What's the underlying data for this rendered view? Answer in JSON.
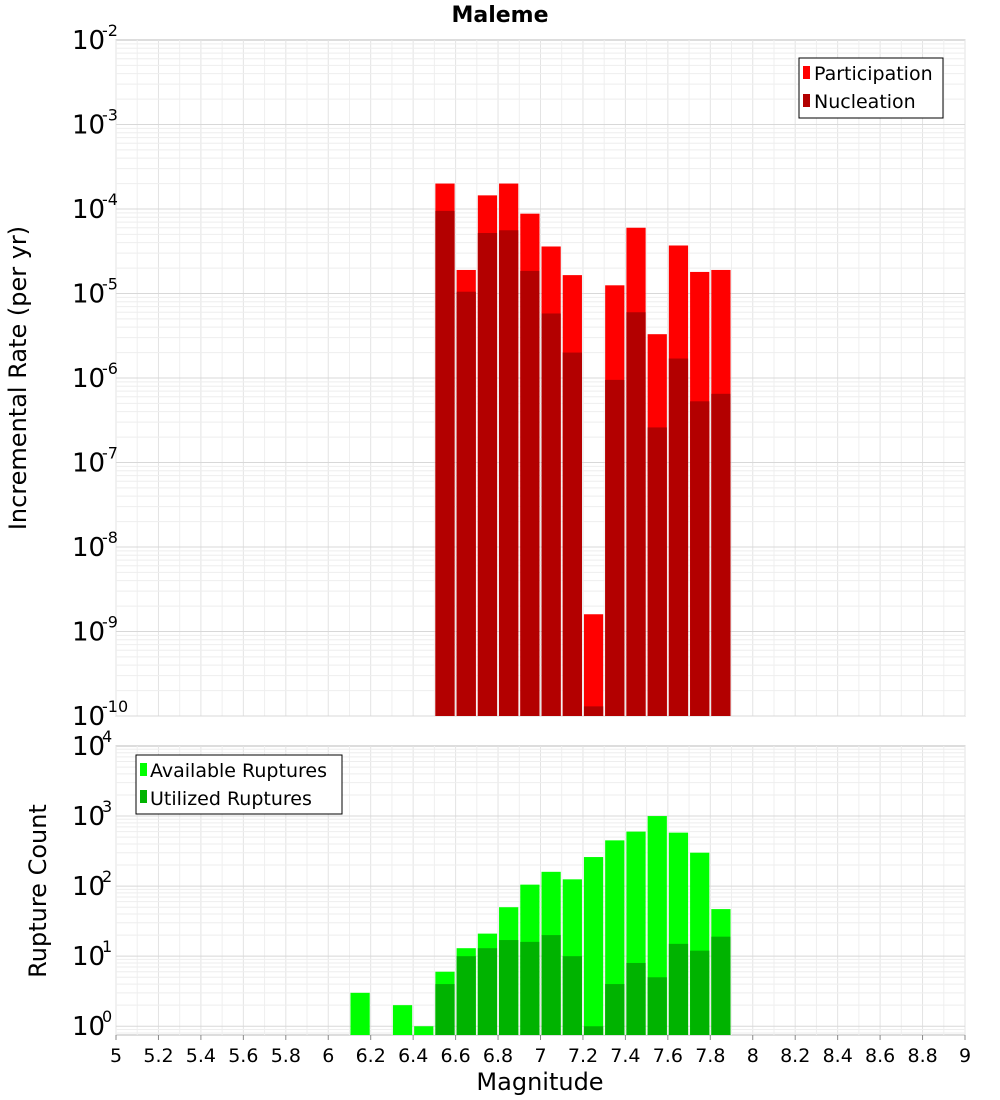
{
  "chart_data": [
    {
      "type": "bar",
      "title": "Maleme",
      "xlabel": "",
      "ylabel": "Incremental Rate (per yr)",
      "xlim": [
        5,
        9
      ],
      "ylim": [
        1e-10,
        0.01
      ],
      "yscale": "log",
      "grid": true,
      "legend_position": "top-right",
      "x": [
        6.55,
        6.65,
        6.75,
        6.85,
        6.95,
        7.05,
        7.15,
        7.25,
        7.35,
        7.45,
        7.55,
        7.65,
        7.75,
        7.85
      ],
      "series": [
        {
          "name": "Participation",
          "color": "#ff0000",
          "values": [
            0.0002,
            1.9e-05,
            0.000145,
            0.0002,
            8.8e-05,
            3.6e-05,
            1.65e-05,
            1.6e-09,
            1.25e-05,
            6e-05,
            3.3e-06,
            3.7e-05,
            1.8e-05,
            1.9e-05
          ]
        },
        {
          "name": "Nucleation",
          "color": "#b30000",
          "values": [
            9.5e-05,
            1.05e-05,
            5.2e-05,
            5.6e-05,
            1.85e-05,
            5.8e-06,
            2e-06,
            1.3e-10,
            9.5e-07,
            6e-06,
            2.6e-07,
            1.7e-06,
            5.3e-07,
            6.5e-07
          ]
        }
      ]
    },
    {
      "type": "bar",
      "title": "",
      "xlabel": "Magnitude",
      "ylabel": "Rupture Count",
      "xlim": [
        5,
        9
      ],
      "ylim": [
        0.75,
        10000.0
      ],
      "yscale": "log",
      "grid": true,
      "legend_position": "top-left",
      "x": [
        6.15,
        6.35,
        6.45,
        6.55,
        6.65,
        6.75,
        6.85,
        6.95,
        7.05,
        7.15,
        7.25,
        7.35,
        7.45,
        7.55,
        7.65,
        7.75,
        7.85
      ],
      "series": [
        {
          "name": "Available Ruptures",
          "color": "#00ff00",
          "values": [
            3,
            2,
            1,
            6,
            13,
            21,
            50,
            105,
            160,
            125,
            260,
            450,
            600,
            1000,
            580,
            300,
            47
          ]
        },
        {
          "name": "Utilized Ruptures",
          "color": "#00b300",
          "values": [
            0,
            0,
            0,
            4,
            10,
            13,
            17,
            16,
            20,
            10,
            1,
            4,
            8,
            5,
            15,
            12,
            19
          ]
        }
      ]
    }
  ],
  "x_ticks": [
    "5",
    "5.2",
    "5.4",
    "5.6",
    "5.8",
    "6",
    "6.2",
    "6.4",
    "6.6",
    "6.8",
    "7",
    "7.2",
    "7.4",
    "7.6",
    "7.8",
    "8",
    "8.2",
    "8.4",
    "8.6",
    "8.8",
    "9"
  ],
  "top_y_ticks": [
    {
      "base": "10",
      "exp": "-2"
    },
    {
      "base": "10",
      "exp": "-3"
    },
    {
      "base": "10",
      "exp": "-4"
    },
    {
      "base": "10",
      "exp": "-5"
    },
    {
      "base": "10",
      "exp": "-6"
    },
    {
      "base": "10",
      "exp": "-7"
    },
    {
      "base": "10",
      "exp": "-8"
    },
    {
      "base": "10",
      "exp": "-9"
    },
    {
      "base": "10",
      "exp": "-10"
    }
  ],
  "bottom_y_ticks": [
    {
      "base": "10",
      "exp": "4"
    },
    {
      "base": "10",
      "exp": "3"
    },
    {
      "base": "10",
      "exp": "2"
    },
    {
      "base": "10",
      "exp": "1"
    },
    {
      "base": "10",
      "exp": "0"
    }
  ]
}
